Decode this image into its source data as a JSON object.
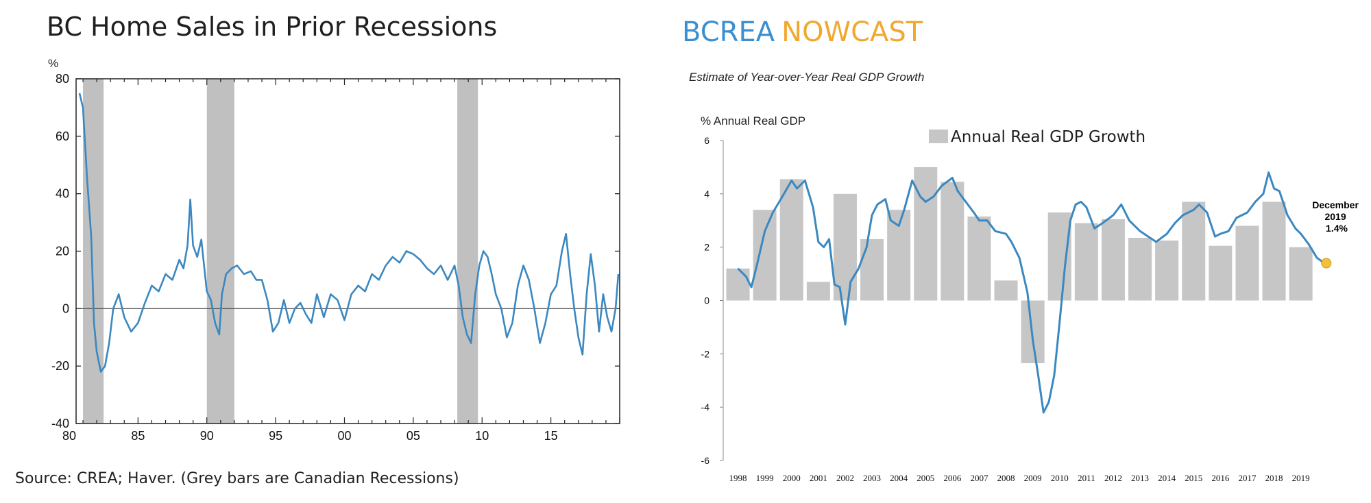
{
  "colors": {
    "line": "#3b88c0",
    "recession": "#c0c0c0",
    "bar": "#c6c6c6",
    "brand_blue": "#3b8fd0",
    "brand_gold": "#f0a830",
    "marker": "#f4c037"
  },
  "chart_data": [
    {
      "type": "line",
      "title": "BC Home Sales in Prior Recessions",
      "ylabel": "%",
      "ylim": [
        -40,
        80
      ],
      "xlim": [
        1980.5,
        2020.0
      ],
      "x_ticks": [
        1980,
        1985,
        1990,
        1995,
        2000,
        2005,
        2010,
        2015
      ],
      "x_tick_labels": [
        "80",
        "85",
        "90",
        "95",
        "00",
        "05",
        "10",
        "15"
      ],
      "y_ticks": [
        -40,
        -20,
        0,
        20,
        40,
        60,
        80
      ],
      "y_tick_labels": [
        "-40",
        "-20",
        "0",
        "20",
        "40",
        "60",
        "80"
      ],
      "recessions": [
        [
          1981.0,
          1982.5
        ],
        [
          1990.0,
          1992.0
        ],
        [
          2008.2,
          2009.7
        ]
      ],
      "source": "Source: CREA; Haver.  (Grey bars are Canadian Recessions)",
      "series": [
        {
          "x": [
            1980.75,
            1981.0,
            1981.3,
            1981.6,
            1981.8,
            1982.0,
            1982.3,
            1982.6,
            1982.9,
            1983.2,
            1983.6,
            1984.0,
            1984.5,
            1985.0,
            1985.5,
            1986.0,
            1986.5,
            1987.0,
            1987.5,
            1988.0,
            1988.3,
            1988.6,
            1988.8,
            1989.0,
            1989.3,
            1989.6,
            1989.8,
            1990.0,
            1990.3,
            1990.6,
            1990.9,
            1991.1,
            1991.4,
            1991.8,
            1992.2,
            1992.7,
            1993.2,
            1993.6,
            1994.0,
            1994.4,
            1994.8,
            1995.2,
            1995.6,
            1996.0,
            1996.4,
            1996.8,
            1997.2,
            1997.6,
            1998.0,
            1998.5,
            1999.0,
            1999.5,
            2000.0,
            2000.5,
            2001.0,
            2001.5,
            2002.0,
            2002.5,
            2003.0,
            2003.5,
            2004.0,
            2004.5,
            2005.0,
            2005.5,
            2006.0,
            2006.5,
            2007.0,
            2007.5,
            2008.0,
            2008.3,
            2008.6,
            2008.9,
            2009.2,
            2009.5,
            2009.8,
            2010.1,
            2010.4,
            2010.7,
            2011.0,
            2011.4,
            2011.8,
            2012.2,
            2012.6,
            2013.0,
            2013.4,
            2013.8,
            2014.2,
            2014.6,
            2015.0,
            2015.4,
            2015.8,
            2016.1,
            2016.4,
            2016.7,
            2017.0,
            2017.3,
            2017.6,
            2017.9,
            2018.2,
            2018.5,
            2018.8,
            2019.1,
            2019.4,
            2019.7,
            2019.9
          ],
          "y": [
            75,
            70,
            45,
            25,
            -5,
            -15,
            -22,
            -20,
            -12,
            0,
            5,
            -3,
            -8,
            -5,
            2,
            8,
            6,
            12,
            10,
            17,
            14,
            22,
            38,
            22,
            18,
            24,
            15,
            6,
            3,
            -5,
            -9,
            5,
            12,
            14,
            15,
            12,
            13,
            10,
            10,
            3,
            -8,
            -5,
            3,
            -5,
            0,
            2,
            -2,
            -5,
            5,
            -3,
            5,
            3,
            -4,
            5,
            8,
            6,
            12,
            10,
            15,
            18,
            16,
            20,
            19,
            17,
            14,
            12,
            15,
            10,
            15,
            8,
            -3,
            -9,
            -12,
            5,
            15,
            20,
            18,
            12,
            5,
            0,
            -10,
            -5,
            8,
            15,
            10,
            0,
            -12,
            -5,
            5,
            8,
            20,
            26,
            12,
            0,
            -10,
            -16,
            5,
            19,
            8,
            -8,
            5,
            -3,
            -8,
            0,
            12
          ]
        }
      ]
    },
    {
      "type": "bar",
      "title": "",
      "subtitle": "Estimate of Year-over-Year Real GDP Growth",
      "ylabel": "% Annual Real GDP",
      "ylim": [
        -6,
        6
      ],
      "y_ticks": [
        -6,
        -4,
        -2,
        0,
        2,
        4,
        6
      ],
      "y_tick_labels": [
        "-6",
        "-4",
        "-2",
        "0",
        "2",
        "4",
        "6"
      ],
      "categories": [
        "1998",
        "1999",
        "2000",
        "2001",
        "2002",
        "2003",
        "2004",
        "2005",
        "2006",
        "2007",
        "2008",
        "2009",
        "2010",
        "2011",
        "2012",
        "2013",
        "2014",
        "2015",
        "2016",
        "2017",
        "2018",
        "2019"
      ],
      "series": [
        {
          "name": "Annual Real GDP Growth",
          "values": [
            1.2,
            3.4,
            4.55,
            0.7,
            4.0,
            2.3,
            3.4,
            5.0,
            4.45,
            3.15,
            0.75,
            -2.35,
            3.3,
            2.9,
            3.05,
            2.35,
            2.25,
            3.7,
            2.05,
            2.8,
            3.7,
            2.0
          ]
        },
        {
          "name": "",
          "type": "line",
          "x": [
            1998.0,
            1998.3,
            1998.5,
            1998.7,
            1999.0,
            1999.3,
            1999.6,
            2000.0,
            2000.2,
            2000.5,
            2000.8,
            2001.0,
            2001.2,
            2001.4,
            2001.6,
            2001.8,
            2002.0,
            2002.2,
            2002.5,
            2002.8,
            2003.0,
            2003.2,
            2003.5,
            2003.7,
            2004.0,
            2004.2,
            2004.5,
            2004.8,
            2005.0,
            2005.3,
            2005.6,
            2006.0,
            2006.2,
            2006.5,
            2006.8,
            2007.0,
            2007.3,
            2007.6,
            2008.0,
            2008.2,
            2008.5,
            2008.8,
            2009.0,
            2009.2,
            2009.4,
            2009.6,
            2009.8,
            2010.0,
            2010.2,
            2010.4,
            2010.6,
            2010.8,
            2011.0,
            2011.3,
            2011.6,
            2012.0,
            2012.3,
            2012.6,
            2013.0,
            2013.3,
            2013.6,
            2014.0,
            2014.3,
            2014.6,
            2015.0,
            2015.2,
            2015.5,
            2015.8,
            2016.0,
            2016.3,
            2016.6,
            2017.0,
            2017.3,
            2017.6,
            2017.8,
            2018.0,
            2018.2,
            2018.5,
            2018.8,
            2019.0,
            2019.3,
            2019.6,
            2019.95
          ],
          "y": [
            1.2,
            0.9,
            0.5,
            1.3,
            2.6,
            3.3,
            3.8,
            4.5,
            4.2,
            4.5,
            3.5,
            2.2,
            2.0,
            2.3,
            0.6,
            0.5,
            -0.9,
            0.7,
            1.2,
            2.0,
            3.2,
            3.6,
            3.8,
            3.0,
            2.8,
            3.4,
            4.5,
            3.9,
            3.7,
            3.9,
            4.3,
            4.6,
            4.1,
            3.7,
            3.3,
            3.0,
            3.0,
            2.6,
            2.5,
            2.2,
            1.6,
            0.3,
            -1.5,
            -2.8,
            -4.2,
            -3.8,
            -2.8,
            -0.8,
            1.3,
            3.0,
            3.6,
            3.7,
            3.5,
            2.7,
            2.9,
            3.2,
            3.6,
            3.0,
            2.6,
            2.4,
            2.2,
            2.5,
            2.9,
            3.2,
            3.4,
            3.6,
            3.3,
            2.4,
            2.5,
            2.6,
            3.1,
            3.3,
            3.7,
            4.0,
            4.8,
            4.2,
            4.1,
            3.2,
            2.7,
            2.5,
            2.1,
            1.6,
            1.35
          ]
        }
      ],
      "annotation": {
        "lines": [
          "December",
          "2019",
          "1.4%"
        ],
        "value": 1.4
      },
      "brand": {
        "part1": "BCREA",
        "part2": "NOWCAST"
      }
    }
  ]
}
